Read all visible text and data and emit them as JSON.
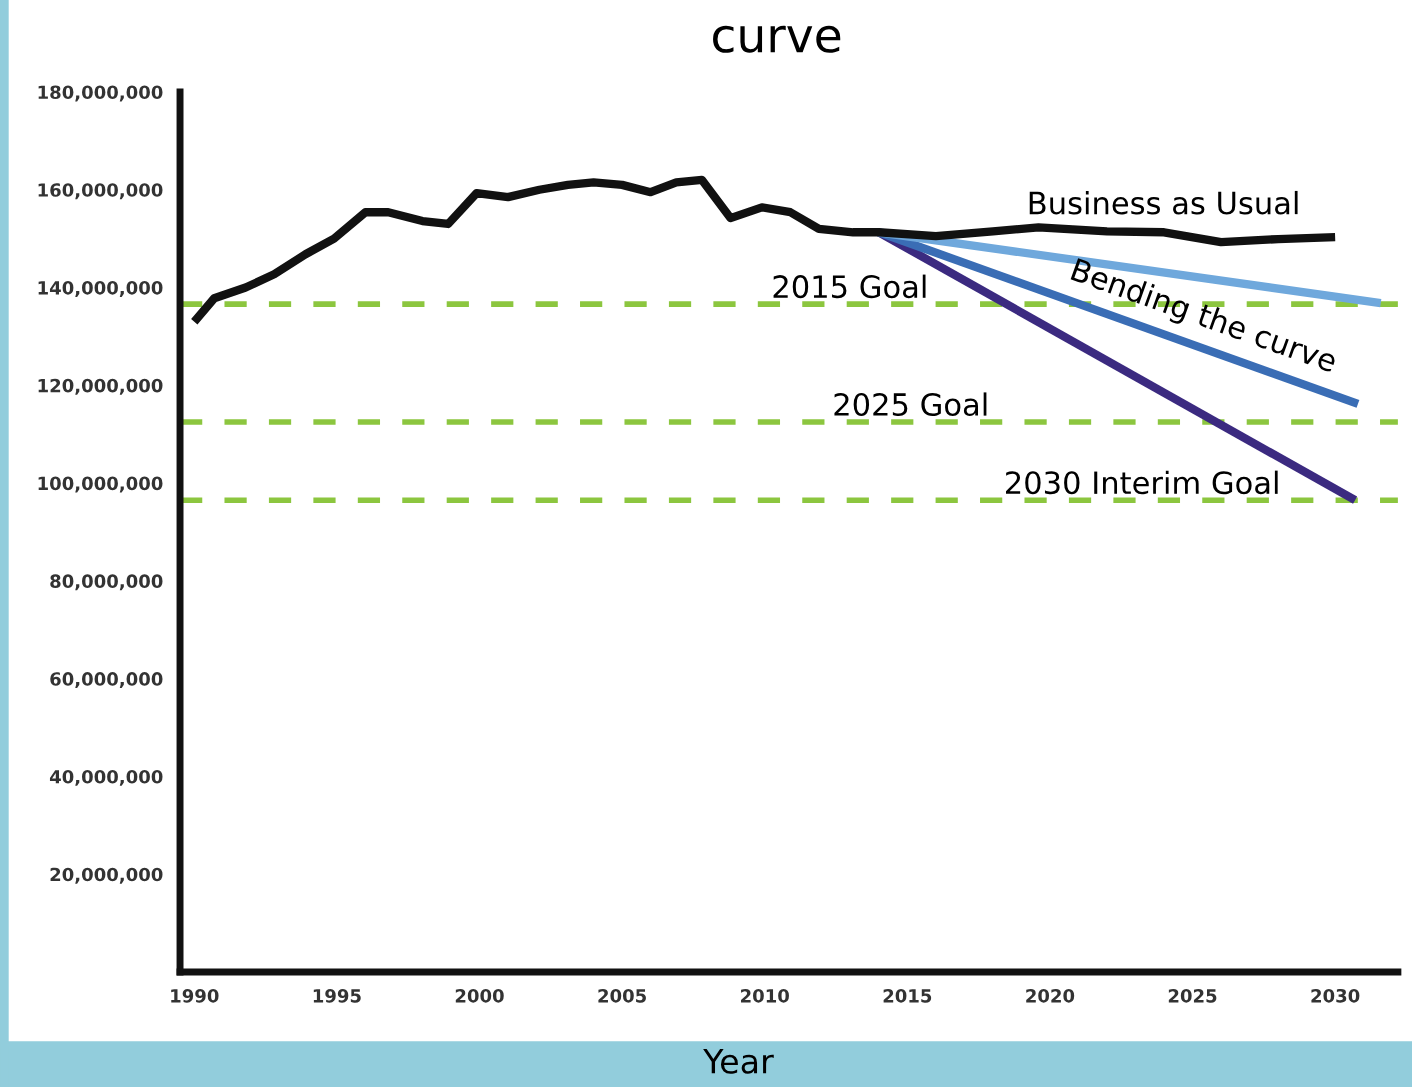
{
  "chart_data": {
    "type": "line",
    "title": "curve",
    "xlabel": "Year",
    "xlim": [
      1989.5,
      2032.2
    ],
    "ylim": [
      0,
      180000000
    ],
    "xticks": [
      1990,
      1995,
      2000,
      2005,
      2010,
      2015,
      2020,
      2025,
      2030
    ],
    "yticks": [
      {
        "value": 20000000,
        "label": "20,000,000"
      },
      {
        "value": 40000000,
        "label": "40,000,000"
      },
      {
        "value": 60000000,
        "label": "60,000,000"
      },
      {
        "value": 80000000,
        "label": "80,000,000"
      },
      {
        "value": 100000000,
        "label": "100,000,000"
      },
      {
        "value": 120000000,
        "label": "120,000,000"
      },
      {
        "value": 140000000,
        "label": "140,000,000"
      },
      {
        "value": 160000000,
        "label": "160,000,000"
      },
      {
        "value": 180000000,
        "label": "180,000,000"
      }
    ],
    "grid": false,
    "marker": "none",
    "line_style": "solid",
    "series": [
      {
        "name": "Business as Usual",
        "color": "#111111",
        "x": [
          1990,
          1990.7,
          1991.8,
          1992.8,
          1993.9,
          1994.9,
          1996,
          1996.8,
          1998,
          1998.9,
          1999.9,
          2001,
          2002.1,
          2003.1,
          2004,
          2005,
          2006,
          2006.9,
          2007.8,
          2008.8,
          2009.9,
          2010.9,
          2011.9,
          2013.1,
          2014,
          2016,
          2018,
          2019.6,
          2022,
          2024,
          2026,
          2028,
          2030
        ],
        "values": [
          133000000,
          137800000,
          140000000,
          142700000,
          146800000,
          150000000,
          155400000,
          155400000,
          153600000,
          153000000,
          159300000,
          158500000,
          160000000,
          161000000,
          161500000,
          161000000,
          159500000,
          161500000,
          162000000,
          154200000,
          156400000,
          155400000,
          152000000,
          151300000,
          151300000,
          150500000,
          151500000,
          152300000,
          151500000,
          151300000,
          149300000,
          149900000,
          150300000
        ]
      },
      {
        "color": "#6fa8dc",
        "x": [
          2014,
          2031.6
        ],
        "values": [
          151300000,
          136800000
        ]
      },
      {
        "name": "Bending the curve",
        "color": "#3a6db5",
        "x": [
          2014,
          2030.8
        ],
        "values": [
          151300000,
          116200000
        ]
      },
      {
        "color": "#3b2a80",
        "x": [
          2014,
          2030.7
        ],
        "values": [
          151300000,
          96500000
        ]
      }
    ],
    "ref_lines": [
      {
        "axis": "y",
        "value": 136600000,
        "label": "2015 Goal",
        "color": "#8cc63f",
        "line_style": "dashed"
      },
      {
        "axis": "y",
        "value": 112500000,
        "label": "2025 Goal",
        "color": "#8cc63f",
        "line_style": "dashed"
      },
      {
        "axis": "y",
        "value": 96500000,
        "label": "2030 Interim Goal",
        "color": "#8cc63f",
        "line_style": "dashed"
      }
    ]
  }
}
